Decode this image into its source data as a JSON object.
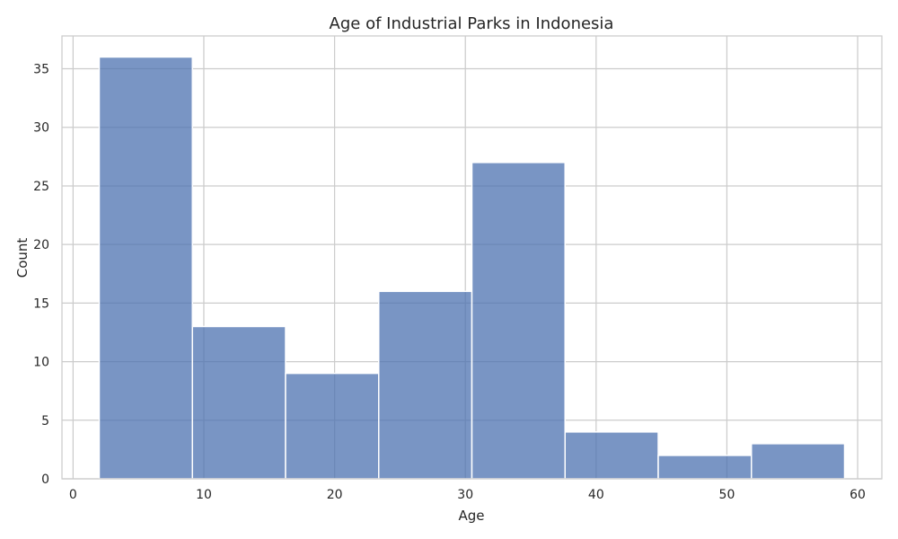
{
  "chart_data": {
    "type": "bar",
    "title": "Age of Industrial Parks in Indonesia",
    "xlabel": "Age",
    "ylabel": "Count",
    "bins": [
      {
        "start": 2.0,
        "end": 9.125,
        "count": 36
      },
      {
        "start": 9.125,
        "end": 16.25,
        "count": 13
      },
      {
        "start": 16.25,
        "end": 23.375,
        "count": 9
      },
      {
        "start": 23.375,
        "end": 30.5,
        "count": 16
      },
      {
        "start": 30.5,
        "end": 37.625,
        "count": 27
      },
      {
        "start": 37.625,
        "end": 44.75,
        "count": 4
      },
      {
        "start": 44.75,
        "end": 51.875,
        "count": 2
      },
      {
        "start": 51.875,
        "end": 59.0,
        "count": 3
      }
    ],
    "xlim": [
      -0.85,
      61.85
    ],
    "ylim": [
      0,
      37.8
    ],
    "xticks": [
      "0",
      "10",
      "20",
      "30",
      "40",
      "50",
      "60"
    ],
    "yticks": [
      "0",
      "5",
      "10",
      "15",
      "20",
      "25",
      "30",
      "35"
    ],
    "grid": true,
    "bar_color": "#4C72B0",
    "bar_opacity": 0.75
  }
}
